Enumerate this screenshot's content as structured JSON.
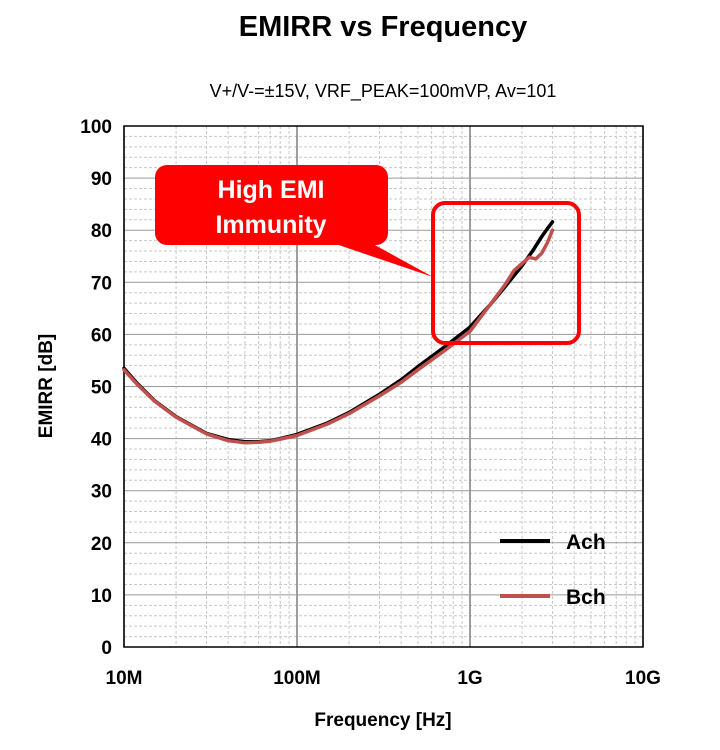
{
  "chart_data": {
    "type": "line",
    "title": "EMIRR vs Frequency",
    "subtitle": "V+/V-=±15V, VRF_PEAK=100mVP, Av=101",
    "xlabel": "Frequency [Hz]",
    "ylabel": "EMIRR [dB]",
    "x_scale": "log",
    "xlim": [
      10000000,
      10000000000
    ],
    "ylim": [
      0,
      100
    ],
    "x_ticks": [
      10000000,
      100000000,
      1000000000,
      10000000000
    ],
    "x_tick_labels": [
      "10M",
      "100M",
      "1G",
      "10G"
    ],
    "y_ticks": [
      0,
      10,
      20,
      30,
      40,
      50,
      60,
      70,
      80,
      90,
      100
    ],
    "y_tick_labels": [
      "0",
      "10",
      "20",
      "30",
      "40",
      "50",
      "60",
      "70",
      "80",
      "90",
      "100"
    ],
    "grid": true,
    "legend_position": "bottom-right",
    "annotation": {
      "lines": [
        "High EMI",
        "Immunity"
      ],
      "color": "#ff0000"
    },
    "series": [
      {
        "name": "Ach",
        "color": "#000000",
        "x": [
          10000000,
          12000000,
          15000000,
          20000000,
          30000000,
          40000000,
          50000000,
          60000000,
          70000000,
          80000000,
          100000000,
          150000000,
          200000000,
          300000000,
          400000000,
          500000000,
          700000000,
          1000000000,
          1300000000,
          1600000000,
          2000000000,
          2300000000,
          2600000000,
          2800000000,
          3000000000
        ],
        "y": [
          53.5,
          50.5,
          47.3,
          44.2,
          41.0,
          39.8,
          39.4,
          39.4,
          39.6,
          40.0,
          40.8,
          43.0,
          45.0,
          48.5,
          51.3,
          53.8,
          57.4,
          61.4,
          65.6,
          69.2,
          73.2,
          76.0,
          78.8,
          80.3,
          81.6
        ]
      },
      {
        "name": "Bch",
        "color": "#c0504d",
        "x": [
          10000000,
          12000000,
          15000000,
          20000000,
          30000000,
          40000000,
          50000000,
          60000000,
          70000000,
          80000000,
          100000000,
          150000000,
          200000000,
          300000000,
          400000000,
          500000000,
          700000000,
          1000000000,
          1300000000,
          1600000000,
          1800000000,
          2000000000,
          2200000000,
          2400000000,
          2600000000,
          2800000000,
          3000000000
        ],
        "y": [
          53.2,
          50.3,
          47.2,
          44.1,
          40.9,
          39.6,
          39.2,
          39.3,
          39.5,
          39.9,
          40.6,
          42.8,
          44.8,
          48.2,
          50.8,
          53.2,
          56.7,
          60.6,
          65.6,
          69.6,
          72.3,
          73.6,
          74.8,
          74.5,
          75.6,
          77.6,
          80.0
        ]
      }
    ]
  }
}
